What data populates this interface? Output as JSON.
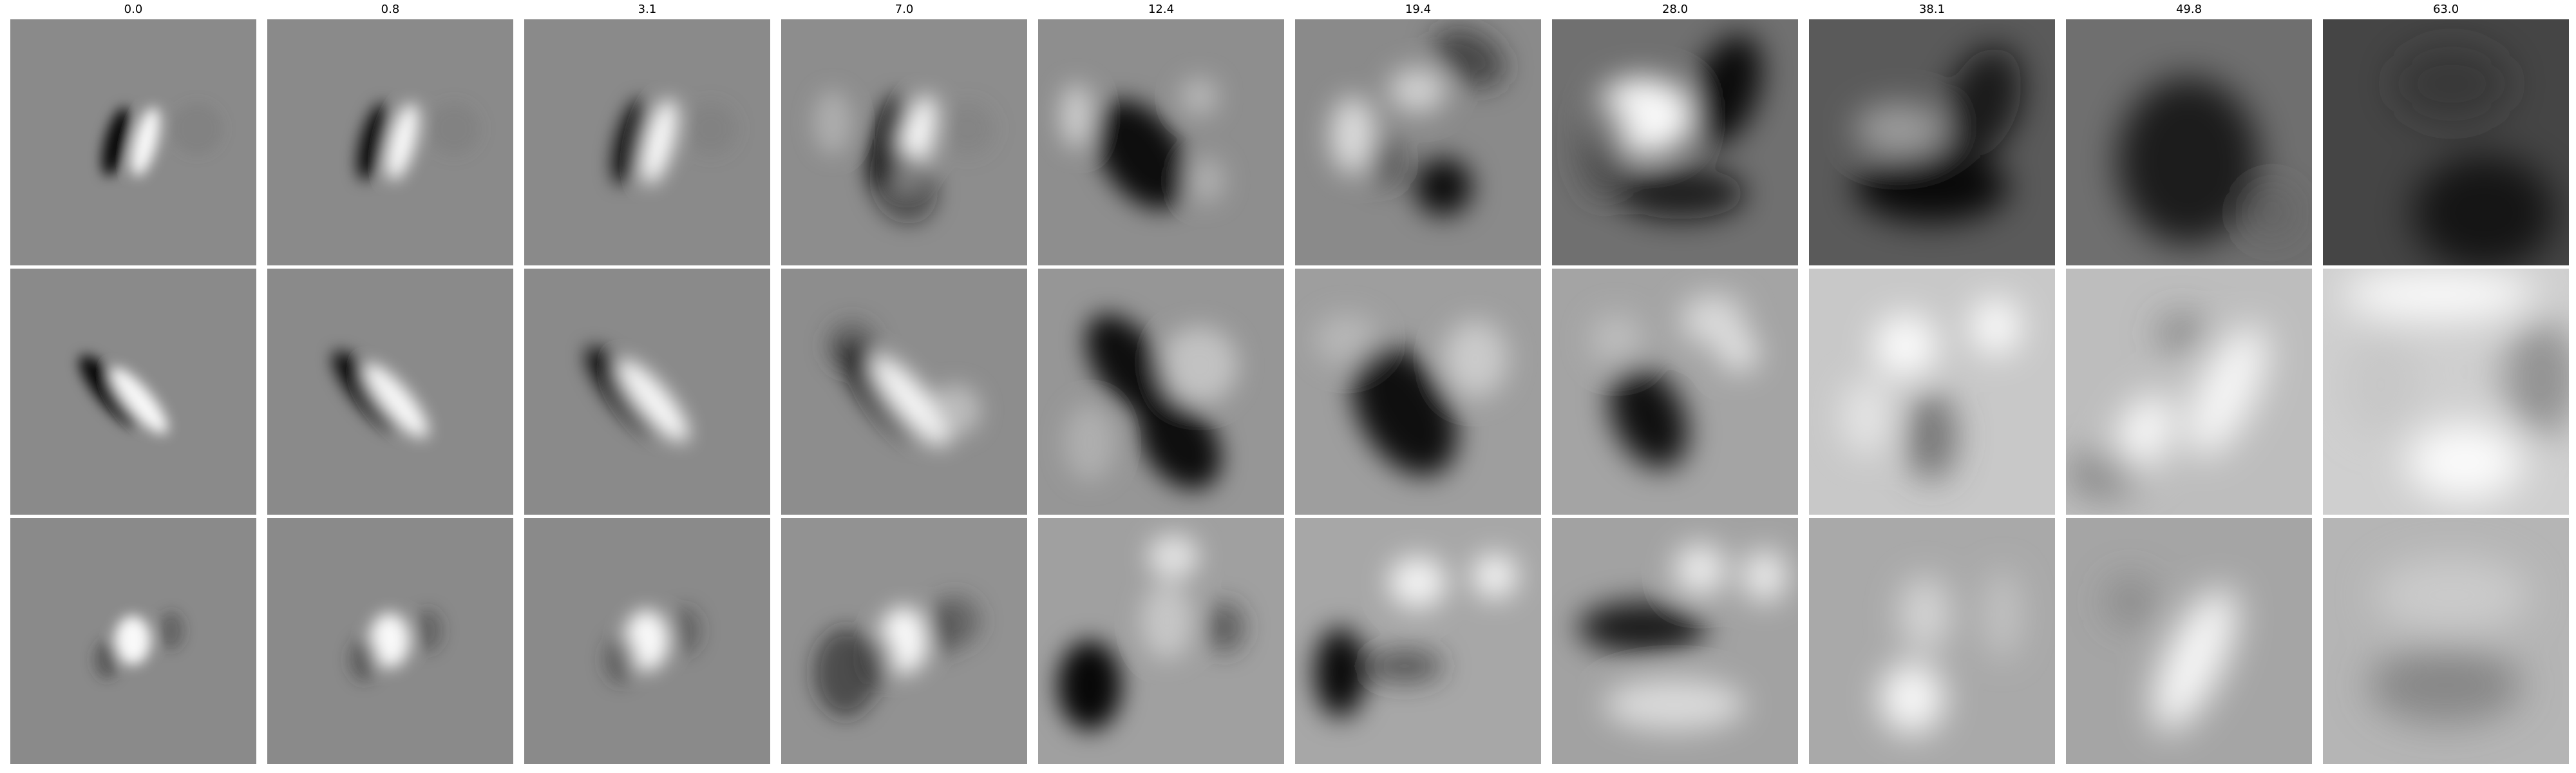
{
  "column_titles": [
    "0.0",
    "0.8",
    "3.1",
    "7.0",
    "12.4",
    "19.4",
    "28.0",
    "38.1",
    "49.8",
    "63.0"
  ],
  "rows": 3,
  "columns": 10,
  "colormap": "grayscale",
  "icons": {
    "panel": "grayscale-filter-image"
  }
}
